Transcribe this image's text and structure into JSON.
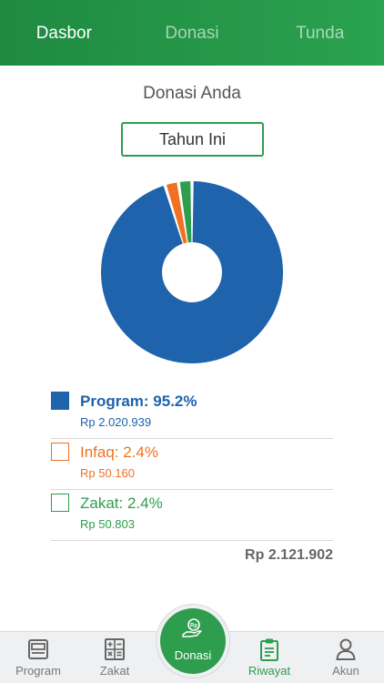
{
  "header": {
    "tabs": [
      {
        "label": "Dasbor",
        "active": true
      },
      {
        "label": "Donasi",
        "active": false
      },
      {
        "label": "Tunda",
        "active": false
      }
    ]
  },
  "heading": "Donasi Anda",
  "period_button": "Tahun Ini",
  "colors": {
    "program": "#1e63ac",
    "infaq": "#f07122",
    "zakat": "#2e9d4e",
    "accent": "#2e9d4e"
  },
  "chart_data": {
    "type": "pie",
    "categories": [
      "Program",
      "Infaq",
      "Zakat"
    ],
    "values": [
      95.2,
      2.4,
      2.4
    ]
  },
  "legend": [
    {
      "label": "Program: 95.2%",
      "amount": "Rp 2.020.939"
    },
    {
      "label": "Infaq: 2.4%",
      "amount": "Rp 50.160"
    },
    {
      "label": "Zakat: 2.4%",
      "amount": "Rp 50.803"
    }
  ],
  "total": "Rp 2.121.902",
  "bottom_nav": {
    "program": {
      "label": "Program",
      "icon": "program-icon"
    },
    "zakat": {
      "label": "Zakat",
      "icon": "calculator-icon"
    },
    "donasi": {
      "label": "Donasi",
      "icon": "donate-hand-icon"
    },
    "riwayat": {
      "label": "Riwayat",
      "icon": "clipboard-icon",
      "active": true
    },
    "akun": {
      "label": "Akun",
      "icon": "user-icon"
    }
  }
}
